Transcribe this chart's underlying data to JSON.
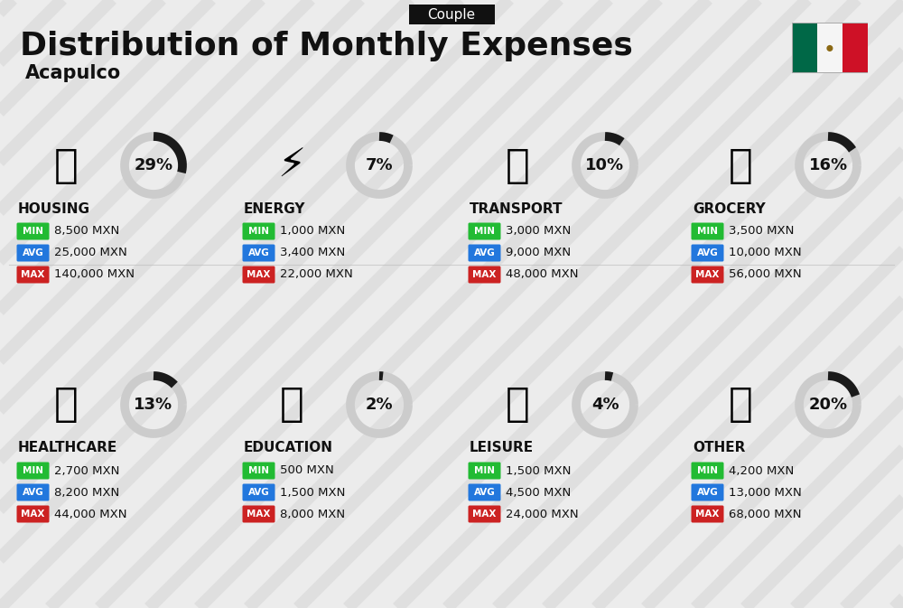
{
  "title": "Distribution of Monthly Expenses",
  "subtitle": "Acapulco",
  "badge": "Couple",
  "bg_color": "#ececec",
  "categories": [
    {
      "name": "HOUSING",
      "percent": 29,
      "min": "8,500 MXN",
      "avg": "25,000 MXN",
      "max": "140,000 MXN",
      "row": 0,
      "col": 0
    },
    {
      "name": "ENERGY",
      "percent": 7,
      "min": "1,000 MXN",
      "avg": "3,400 MXN",
      "max": "22,000 MXN",
      "row": 0,
      "col": 1
    },
    {
      "name": "TRANSPORT",
      "percent": 10,
      "min": "3,000 MXN",
      "avg": "9,000 MXN",
      "max": "48,000 MXN",
      "row": 0,
      "col": 2
    },
    {
      "name": "GROCERY",
      "percent": 16,
      "min": "3,500 MXN",
      "avg": "10,000 MXN",
      "max": "56,000 MXN",
      "row": 0,
      "col": 3
    },
    {
      "name": "HEALTHCARE",
      "percent": 13,
      "min": "2,700 MXN",
      "avg": "8,200 MXN",
      "max": "44,000 MXN",
      "row": 1,
      "col": 0
    },
    {
      "name": "EDUCATION",
      "percent": 2,
      "min": "500 MXN",
      "avg": "1,500 MXN",
      "max": "8,000 MXN",
      "row": 1,
      "col": 1
    },
    {
      "name": "LEISURE",
      "percent": 4,
      "min": "1,500 MXN",
      "avg": "4,500 MXN",
      "max": "24,000 MXN",
      "row": 1,
      "col": 2
    },
    {
      "name": "OTHER",
      "percent": 20,
      "min": "4,200 MXN",
      "avg": "13,000 MXN",
      "max": "68,000 MXN",
      "row": 1,
      "col": 3
    }
  ],
  "min_color": "#22bb33",
  "avg_color": "#2277dd",
  "max_color": "#cc2222",
  "text_color": "#111111",
  "circle_fg": "#1a1a1a",
  "circle_bg": "#cccccc",
  "title_fontsize": 26,
  "subtitle_fontsize": 15,
  "badge_fontsize": 11,
  "cat_fontsize": 11,
  "pct_fontsize": 13,
  "val_fontsize": 9.5,
  "lbl_fontsize": 7.5,
  "stripe_color": "#d0d0d0",
  "stripe_alpha": 0.45,
  "flag_green": "#006847",
  "flag_white": "#f5f5f5",
  "flag_red": "#ce1126"
}
